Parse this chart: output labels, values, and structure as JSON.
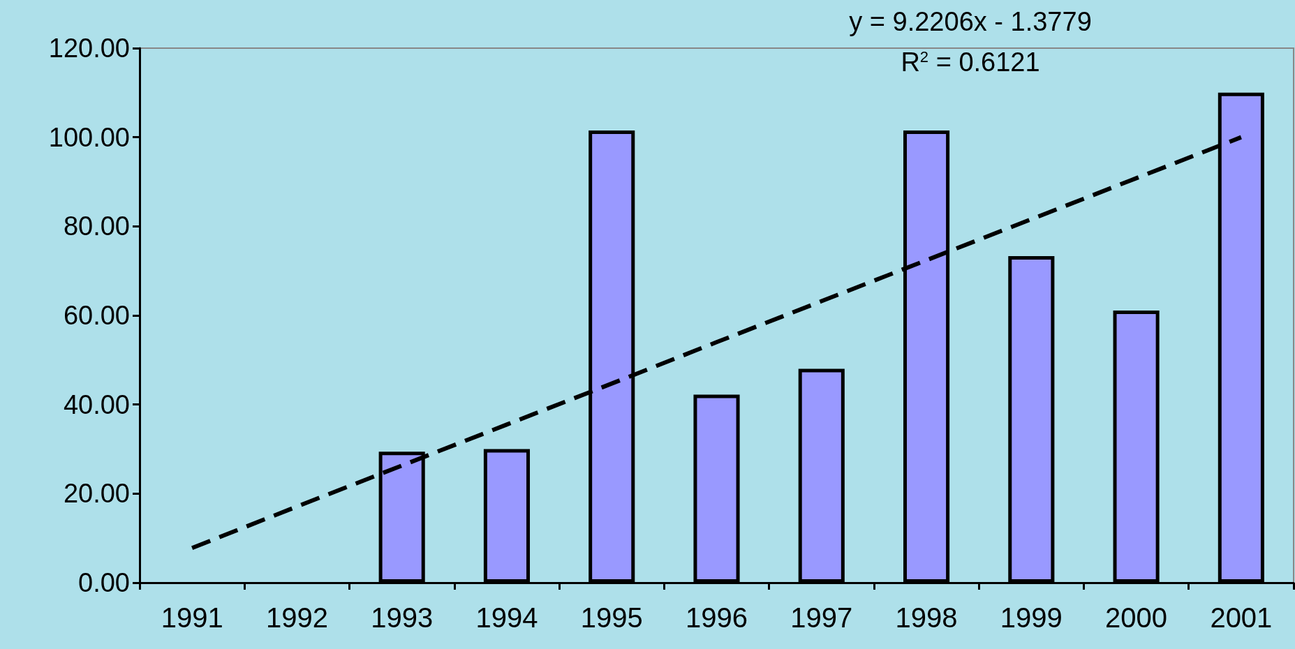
{
  "chart_data": {
    "type": "bar",
    "categories": [
      "1991",
      "1992",
      "1993",
      "1994",
      "1995",
      "1996",
      "1997",
      "1998",
      "1999",
      "2000",
      "2001"
    ],
    "series": [
      {
        "color": "#9999ff",
        "values": [
          null,
          null,
          29.4,
          30.0,
          101.5,
          42.2,
          48.0,
          101.5,
          73.3,
          61.1,
          110.0
        ]
      },
      {
        "type": "line",
        "color": "#000000",
        "line_style": "dashed",
        "marker": "none",
        "values": [
          7.8,
          17.1,
          26.3,
          35.5,
          44.7,
          54.0,
          63.2,
          72.4,
          81.6,
          90.8,
          100.0
        ]
      }
    ],
    "ylim": [
      0,
      120
    ],
    "yticks": [
      {
        "value": 0,
        "label": "0.00"
      },
      {
        "value": 20,
        "label": "20.00"
      },
      {
        "value": 40,
        "label": "40.00"
      },
      {
        "value": 60,
        "label": "60.00"
      },
      {
        "value": 80,
        "label": "80.00"
      },
      {
        "value": 100,
        "label": "100.00"
      },
      {
        "value": 120,
        "label": "120.00"
      }
    ],
    "annotations": [
      "y = 9.2206x - 1.3779",
      "R$^{2}$ = 0.6121"
    ],
    "grid": false
  }
}
